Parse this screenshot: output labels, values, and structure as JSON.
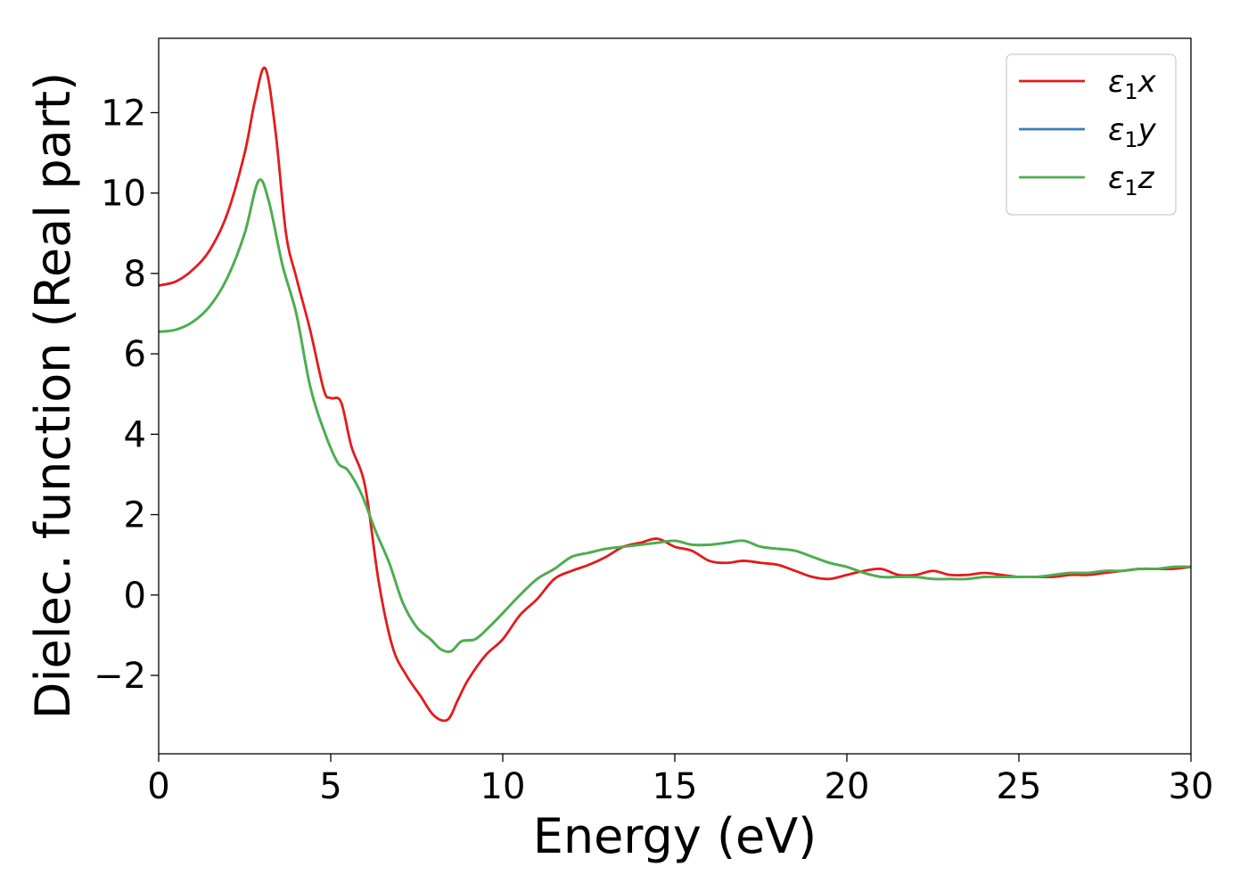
{
  "chart_data": {
    "type": "line",
    "title": "",
    "xlabel": "Energy (eV)",
    "ylabel": "Dielec. function (Real part)",
    "xlim": [
      0,
      30
    ],
    "ylim": [
      -3.95,
      13.85
    ],
    "xticks": [
      0,
      5,
      10,
      15,
      20,
      25,
      30
    ],
    "xtick_labels": [
      "0",
      "5",
      "10",
      "15",
      "20",
      "25",
      "30"
    ],
    "yticks": [
      -2,
      0,
      2,
      4,
      6,
      8,
      10,
      12
    ],
    "ytick_labels": [
      "−2",
      "0",
      "2",
      "4",
      "6",
      "8",
      "10",
      "12"
    ],
    "grid": false,
    "legend_position": "top-right",
    "series": [
      {
        "name": "ε₁x",
        "legend_main": "ε",
        "legend_sub": "1",
        "legend_suffix": "x",
        "color": "#e41a1c",
        "x": [
          0,
          0.5,
          1.0,
          1.5,
          2.0,
          2.5,
          2.8,
          3.1,
          3.4,
          3.7,
          4.0,
          4.4,
          4.8,
          5.0,
          5.3,
          5.6,
          6.0,
          6.4,
          6.8,
          7.2,
          7.6,
          8.0,
          8.4,
          8.7,
          9.0,
          9.5,
          10.0,
          10.5,
          11.0,
          11.5,
          12.0,
          12.5,
          13.0,
          13.5,
          14.0,
          14.5,
          15.0,
          15.5,
          16.0,
          16.5,
          17.0,
          17.5,
          18.0,
          18.5,
          19.0,
          19.5,
          20.0,
          20.5,
          21.0,
          21.5,
          22.0,
          22.5,
          23.0,
          23.5,
          24.0,
          24.5,
          25.0,
          25.5,
          26.0,
          26.5,
          27.0,
          27.5,
          28.0,
          28.5,
          29.0,
          29.5,
          30.0
        ],
        "y": [
          7.7,
          7.8,
          8.1,
          8.6,
          9.5,
          11.0,
          12.3,
          13.1,
          11.5,
          9.0,
          7.9,
          6.6,
          5.1,
          4.9,
          4.8,
          3.7,
          2.7,
          0.3,
          -1.3,
          -2.0,
          -2.5,
          -3.0,
          -3.1,
          -2.6,
          -2.1,
          -1.5,
          -1.1,
          -0.5,
          -0.1,
          0.4,
          0.6,
          0.75,
          0.95,
          1.2,
          1.3,
          1.4,
          1.2,
          1.1,
          0.85,
          0.8,
          0.85,
          0.8,
          0.75,
          0.6,
          0.45,
          0.4,
          0.5,
          0.6,
          0.65,
          0.5,
          0.5,
          0.6,
          0.5,
          0.5,
          0.55,
          0.5,
          0.45,
          0.45,
          0.45,
          0.5,
          0.5,
          0.55,
          0.6,
          0.65,
          0.65,
          0.65,
          0.7
        ]
      },
      {
        "name": "ε₁y",
        "legend_main": "ε",
        "legend_sub": "1",
        "legend_suffix": "y",
        "color": "#377eb8",
        "x": [
          0,
          0.5,
          1.0,
          1.5,
          2.0,
          2.5,
          2.9,
          3.2,
          3.6,
          4.0,
          4.4,
          4.8,
          5.2,
          5.5,
          5.9,
          6.3,
          6.7,
          7.1,
          7.5,
          7.9,
          8.2,
          8.5,
          8.8,
          9.2,
          9.6,
          10.0,
          10.5,
          11.0,
          11.5,
          12.0,
          12.5,
          13.0,
          13.5,
          14.0,
          14.5,
          15.0,
          15.5,
          16.0,
          16.5,
          17.0,
          17.5,
          18.0,
          18.5,
          19.0,
          19.5,
          20.0,
          20.5,
          21.0,
          21.5,
          22.0,
          22.5,
          23.0,
          23.5,
          24.0,
          24.5,
          25.0,
          25.5,
          26.0,
          26.5,
          27.0,
          27.5,
          28.0,
          28.5,
          29.0,
          29.5,
          30.0
        ],
        "y": [
          6.55,
          6.6,
          6.8,
          7.2,
          7.9,
          9.0,
          10.3,
          9.8,
          8.2,
          7.0,
          5.2,
          4.1,
          3.3,
          3.1,
          2.5,
          1.6,
          0.8,
          -0.2,
          -0.8,
          -1.1,
          -1.35,
          -1.4,
          -1.15,
          -1.1,
          -0.8,
          -0.45,
          0.0,
          0.4,
          0.65,
          0.95,
          1.05,
          1.15,
          1.2,
          1.25,
          1.3,
          1.35,
          1.25,
          1.25,
          1.3,
          1.35,
          1.2,
          1.15,
          1.1,
          0.95,
          0.8,
          0.7,
          0.55,
          0.45,
          0.45,
          0.45,
          0.4,
          0.4,
          0.4,
          0.45,
          0.45,
          0.45,
          0.45,
          0.5,
          0.55,
          0.55,
          0.6,
          0.6,
          0.65,
          0.65,
          0.7,
          0.7
        ]
      },
      {
        "name": "ε₁z",
        "legend_main": "ε",
        "legend_sub": "1",
        "legend_suffix": "z",
        "color": "#4daf4a",
        "x": [
          0,
          0.5,
          1.0,
          1.5,
          2.0,
          2.5,
          2.9,
          3.2,
          3.6,
          4.0,
          4.4,
          4.8,
          5.2,
          5.5,
          5.9,
          6.3,
          6.7,
          7.1,
          7.5,
          7.9,
          8.2,
          8.5,
          8.8,
          9.2,
          9.6,
          10.0,
          10.5,
          11.0,
          11.5,
          12.0,
          12.5,
          13.0,
          13.5,
          14.0,
          14.5,
          15.0,
          15.5,
          16.0,
          16.5,
          17.0,
          17.5,
          18.0,
          18.5,
          19.0,
          19.5,
          20.0,
          20.5,
          21.0,
          21.5,
          22.0,
          22.5,
          23.0,
          23.5,
          24.0,
          24.5,
          25.0,
          25.5,
          26.0,
          26.5,
          27.0,
          27.5,
          28.0,
          28.5,
          29.0,
          29.5,
          30.0
        ],
        "y": [
          6.55,
          6.6,
          6.8,
          7.2,
          7.9,
          9.0,
          10.3,
          9.8,
          8.2,
          7.0,
          5.2,
          4.1,
          3.3,
          3.1,
          2.5,
          1.6,
          0.8,
          -0.2,
          -0.8,
          -1.1,
          -1.35,
          -1.4,
          -1.15,
          -1.1,
          -0.8,
          -0.45,
          0.0,
          0.4,
          0.65,
          0.95,
          1.05,
          1.15,
          1.2,
          1.25,
          1.3,
          1.35,
          1.25,
          1.25,
          1.3,
          1.35,
          1.2,
          1.15,
          1.1,
          0.95,
          0.8,
          0.7,
          0.55,
          0.45,
          0.45,
          0.45,
          0.4,
          0.4,
          0.4,
          0.45,
          0.45,
          0.45,
          0.45,
          0.5,
          0.55,
          0.55,
          0.6,
          0.6,
          0.65,
          0.65,
          0.7,
          0.7
        ]
      }
    ]
  }
}
